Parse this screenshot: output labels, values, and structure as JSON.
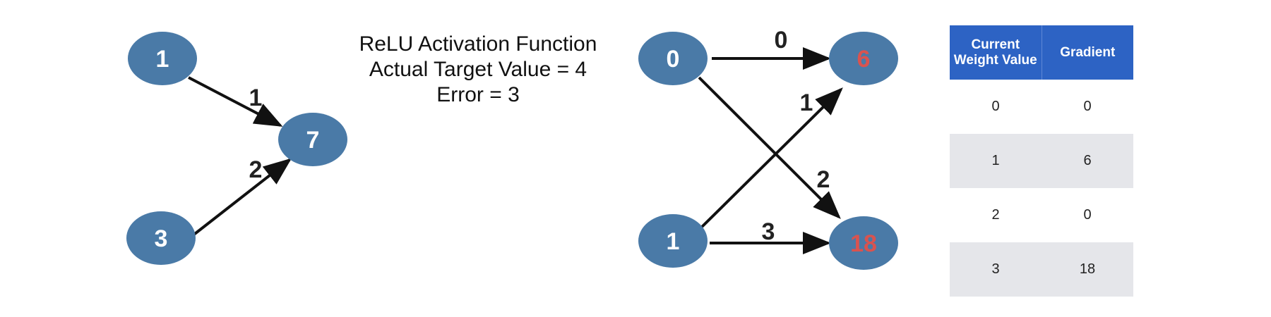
{
  "left_network": {
    "nodes": [
      {
        "id": "in1",
        "label": "1"
      },
      {
        "id": "in2",
        "label": "3"
      },
      {
        "id": "out",
        "label": "7"
      }
    ],
    "edges": [
      {
        "from": "in1",
        "to": "out",
        "label": "1"
      },
      {
        "from": "in2",
        "to": "out",
        "label": "2"
      }
    ]
  },
  "caption": {
    "line1": "ReLU Activation Function",
    "line2": "Actual Target Value = 4",
    "line3": "Error = 3"
  },
  "right_network": {
    "nodes": [
      {
        "id": "a",
        "label": "0",
        "highlight": false
      },
      {
        "id": "b",
        "label": "1",
        "highlight": false
      },
      {
        "id": "c",
        "label": "6",
        "highlight": true
      },
      {
        "id": "d",
        "label": "18",
        "highlight": true
      }
    ],
    "edges": [
      {
        "from": "a",
        "to": "c",
        "label": "0"
      },
      {
        "from": "b",
        "to": "c",
        "label": "1"
      },
      {
        "from": "a",
        "to": "d",
        "label": "2"
      },
      {
        "from": "b",
        "to": "d",
        "label": "3"
      }
    ]
  },
  "colors": {
    "node_fill": "#4a7aa7",
    "node_text": "#ffffff",
    "highlight_text": "#d9534f",
    "table_header": "#2d63c4",
    "row_shade": "#e5e6ea"
  },
  "table": {
    "headers": [
      "Current Weight Value",
      "Gradient"
    ],
    "header_lines": [
      [
        "Current",
        "Weight Value"
      ],
      [
        "Gradient"
      ]
    ],
    "rows": [
      [
        "0",
        "0"
      ],
      [
        "1",
        "6"
      ],
      [
        "2",
        "0"
      ],
      [
        "3",
        "18"
      ]
    ]
  }
}
